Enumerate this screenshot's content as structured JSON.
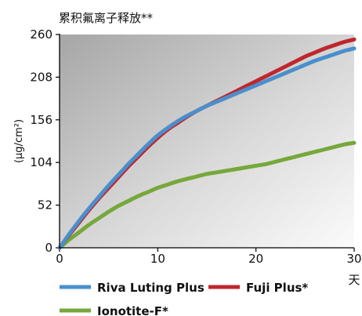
{
  "chart_data": {
    "type": "line",
    "title": "累积氟离子释放**",
    "ylabel": "(µg/cm²)",
    "xlabel": "天",
    "xlim": [
      0,
      30
    ],
    "ylim": [
      0,
      260
    ],
    "xticks": [
      0,
      10,
      20,
      30
    ],
    "yticks": [
      0,
      52,
      104,
      156,
      208,
      260
    ],
    "grid": false,
    "legend_position": "bottom",
    "series": [
      {
        "name": "Riva Luting Plus",
        "color": "#4a8fcc",
        "x": [
          0,
          1,
          2,
          3,
          4,
          5,
          6,
          7,
          8,
          9,
          10,
          11,
          12,
          13,
          14,
          15,
          16,
          17,
          18,
          19,
          20,
          21,
          22,
          23,
          24,
          25,
          26,
          27,
          28,
          29,
          30
        ],
        "y": [
          0,
          17,
          33,
          48,
          62,
          76,
          89,
          102,
          114,
          126,
          137,
          146,
          154,
          161,
          167,
          173,
          178,
          183,
          188,
          193,
          198,
          203,
          208,
          213,
          218,
          223,
          228,
          232,
          236,
          240,
          243
        ]
      },
      {
        "name": "Fuji Plus*",
        "color": "#c0262d",
        "x": [
          0,
          1,
          2,
          3,
          4,
          5,
          6,
          7,
          8,
          9,
          10,
          11,
          12,
          13,
          14,
          15,
          16,
          17,
          18,
          19,
          20,
          21,
          22,
          23,
          24,
          25,
          26,
          27,
          28,
          29,
          30
        ],
        "y": [
          0,
          16,
          31,
          46,
          60,
          73,
          86,
          99,
          111,
          123,
          134,
          144,
          152,
          160,
          167,
          173,
          179,
          185,
          191,
          197,
          203,
          209,
          215,
          221,
          227,
          233,
          238,
          243,
          247,
          251,
          254
        ]
      },
      {
        "name": "Ionotite-F*",
        "color": "#76a83a",
        "x": [
          0,
          1,
          2,
          3,
          4,
          5,
          6,
          7,
          8,
          9,
          10,
          11,
          12,
          13,
          14,
          15,
          16,
          17,
          18,
          19,
          20,
          21,
          22,
          23,
          24,
          25,
          26,
          27,
          28,
          29,
          30
        ],
        "y": [
          0,
          10,
          19,
          28,
          36,
          44,
          51,
          57,
          63,
          68,
          73,
          77,
          81,
          84,
          87,
          90,
          92,
          94,
          96,
          98,
          100,
          102,
          105,
          108,
          111,
          114,
          117,
          120,
          123,
          126,
          128
        ]
      }
    ]
  }
}
